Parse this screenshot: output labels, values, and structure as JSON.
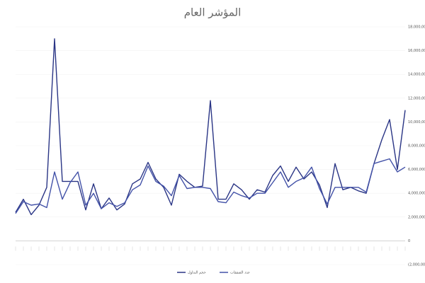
{
  "chart_data": {
    "type": "line",
    "title": "المؤشر العام",
    "categories": [
      null,
      null,
      null,
      null,
      null,
      null,
      null,
      null,
      null,
      null,
      null,
      null,
      null,
      null,
      null,
      null,
      null,
      null,
      null,
      null,
      null,
      null,
      null,
      null,
      null,
      null,
      null,
      null,
      null,
      null,
      null,
      null,
      null,
      null,
      null,
      null,
      null,
      null,
      null,
      null,
      null,
      null,
      null,
      null,
      null,
      null,
      null,
      null,
      null,
      null,
      null
    ],
    "series": [
      {
        "name": "حجم التداول",
        "color": "#2a3585",
        "values": [
          2400000,
          3500000,
          2200000,
          3000000,
          4500000,
          17000000,
          5000000,
          5000000,
          5000000,
          2600000,
          4800000,
          2700000,
          3600000,
          2600000,
          3100000,
          4800000,
          5200000,
          6600000,
          5200000,
          4500000,
          3000000,
          5600000,
          5000000,
          4500000,
          4600000,
          11800000,
          3500000,
          3500000,
          4800000,
          4300000,
          3500000,
          4300000,
          4100000,
          5500000,
          6300000,
          5000000,
          6200000,
          5200000,
          5800000,
          4700000,
          2800000,
          6500000,
          4300000,
          4500000,
          4200000,
          4000000,
          6500000,
          8500000,
          10200000,
          6000000,
          11000000
        ]
      },
      {
        "name": "عدد الصفقات",
        "color": "#4352a8",
        "values": [
          2300000,
          3300000,
          3000000,
          3100000,
          2800000,
          5800000,
          3500000,
          4900000,
          5800000,
          3000000,
          4000000,
          2700000,
          3200000,
          2900000,
          3200000,
          4300000,
          4700000,
          6300000,
          5000000,
          4600000,
          3800000,
          5500000,
          4400000,
          4500000,
          4500000,
          4400000,
          3300000,
          3200000,
          4100000,
          3800000,
          3600000,
          4000000,
          4000000,
          4900000,
          5800000,
          4500000,
          5000000,
          5300000,
          6200000,
          4400000,
          3100000,
          4500000,
          4500000,
          4500000,
          4500000,
          4100000,
          6500000,
          6700000,
          6900000,
          5800000,
          6200000
        ]
      }
    ],
    "ylim": [
      -2000000,
      18000000
    ],
    "yticks": [
      {
        "value": -2000000,
        "label": "(2,000,000)"
      },
      {
        "value": 0,
        "label": "0"
      },
      {
        "value": 2000000,
        "label": "2,000,000"
      },
      {
        "value": 4000000,
        "label": "4,000,000"
      },
      {
        "value": 6000000,
        "label": "6,000,000"
      },
      {
        "value": 8000000,
        "label": "8,000,000"
      },
      {
        "value": 10000000,
        "label": "10,000,000"
      },
      {
        "value": 12000000,
        "label": "12,000,000"
      },
      {
        "value": 14000000,
        "label": "14,000,000"
      },
      {
        "value": 16000000,
        "label": "16,000,000"
      },
      {
        "value": 18000000,
        "label": "18,000,000"
      }
    ],
    "grid": true
  }
}
